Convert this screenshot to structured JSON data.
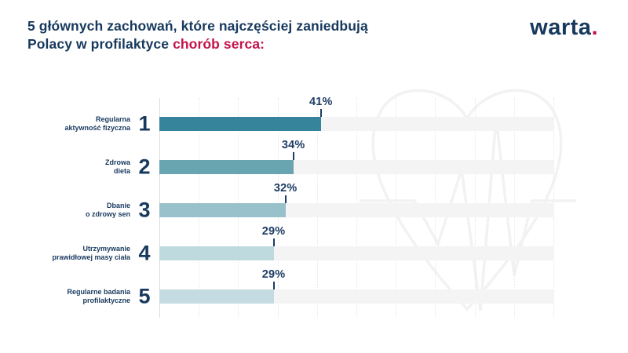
{
  "title": {
    "line1": "5 głównych zachowań, które najczęściej zaniedbują",
    "line2_prefix": "Polacy w profilaktyce ",
    "line2_highlight": "chorób serca:"
  },
  "logo": {
    "text": "warta",
    "dot": "."
  },
  "chart_data": {
    "type": "bar",
    "orientation": "horizontal",
    "title": "5 głównych zachowań, które najczęściej zaniedbują Polacy w profilaktyce chorób serca:",
    "unit": "%",
    "xlim": [
      0,
      100
    ],
    "grid": "dotted vertical gridlines every 10%",
    "legend": "none",
    "categories": [
      "Regularna aktywność fizyczna",
      "Zdrowa dieta",
      "Dbanie o zdrowy sen",
      "Utrzymywanie prawidłowej masy ciała",
      "Regularne badania profilaktyczne"
    ],
    "values": [
      41,
      34,
      32,
      29,
      29
    ]
  },
  "bars": [
    {
      "rank": "1",
      "label_line1": "Regularna",
      "label_line2": "aktywność fizyczna",
      "value": 41,
      "value_label": "41%",
      "color": "#35849b"
    },
    {
      "rank": "2",
      "label_line1": "Zdrowa",
      "label_line2": "dieta",
      "value": 34,
      "value_label": "34%",
      "color": "#68a5b1"
    },
    {
      "rank": "3",
      "label_line1": "Dbanie",
      "label_line2": "o zdrowy sen",
      "value": 32,
      "value_label": "32%",
      "color": "#98c1cb"
    },
    {
      "rank": "4",
      "label_line1": "Utrzymywanie",
      "label_line2": "prawidłowej masy ciała",
      "value": 29,
      "value_label": "29%",
      "color": "#bedade"
    },
    {
      "rank": "5",
      "label_line1": "Regularne badania",
      "label_line2": "profilaktyczne",
      "value": 29,
      "value_label": "29%",
      "color": "#c4dce1"
    }
  ],
  "colors": {
    "navy": "#17395d",
    "red": "#c3134a",
    "track": "#f4f4f4",
    "axis": "#dcdcdc",
    "watermark": "#f2f2f2"
  }
}
